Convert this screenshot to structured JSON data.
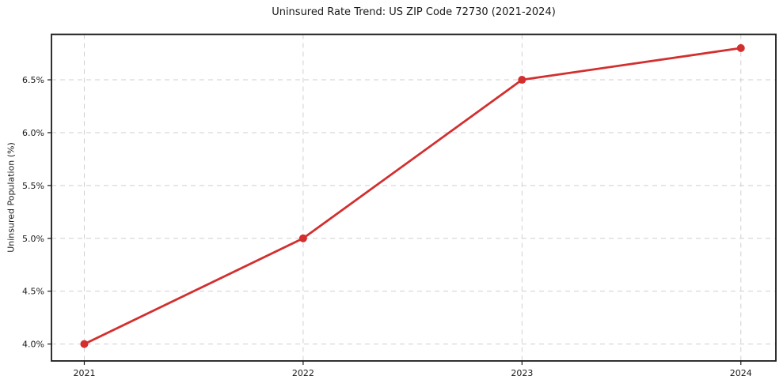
{
  "figure": {
    "title": "Uninsured Rate Trend: US ZIP Code 72730 (2021-2024)",
    "ylabel": "Uninsured Population (%)"
  },
  "chart_data": {
    "type": "line",
    "title": "Uninsured Rate Trend: US ZIP Code 72730 (2021-2024)",
    "xlabel": "",
    "ylabel": "Uninsured Population (%)",
    "x": [
      2021,
      2022,
      2023,
      2024
    ],
    "xtick_labels": [
      "2021",
      "2022",
      "2023",
      "2024"
    ],
    "series": [
      {
        "name": "uninsured-rate",
        "values": [
          4.0,
          5.0,
          6.5,
          6.8
        ],
        "color": "#d32f2f",
        "marker": "circle"
      }
    ],
    "yticks": [
      4.0,
      4.5,
      5.0,
      5.5,
      6.0,
      6.5
    ],
    "ytick_labels": [
      "4.0%",
      "4.5%",
      "5.0%",
      "5.5%",
      "6.0%",
      "6.5%"
    ],
    "xlim": [
      2020.85,
      2024.16
    ],
    "ylim": [
      3.84,
      6.93
    ],
    "grid": true,
    "grid_style": "dashed",
    "legend": false,
    "colors": {
      "line": "#d32f2f",
      "marker": "#d32f2f",
      "grid": "#cfcfcf",
      "frame": "#1a1a1a",
      "text": "#1a1a1a",
      "background": "#ffffff"
    }
  }
}
